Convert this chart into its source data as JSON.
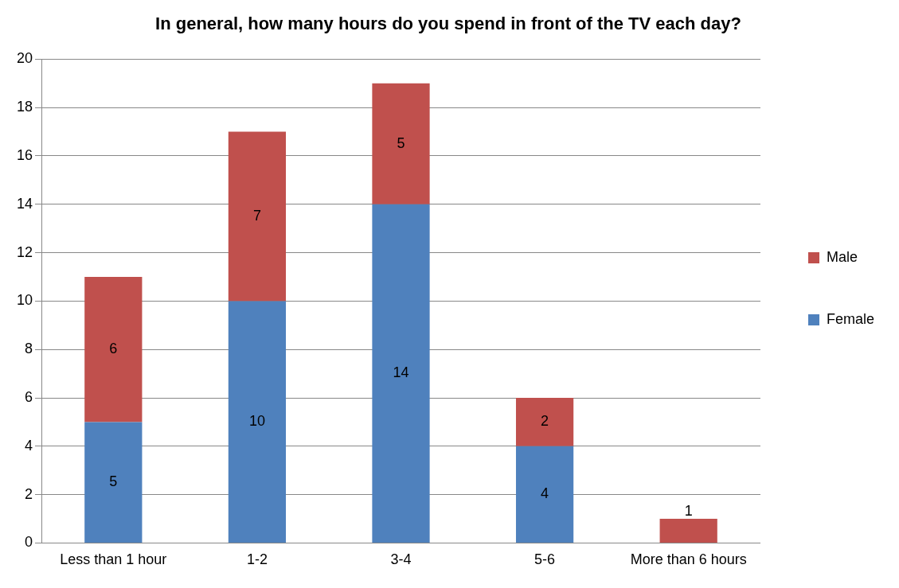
{
  "chart_data": {
    "type": "bar",
    "title": "In general, how many hours do you spend in front of the TV each day?",
    "categories": [
      "Less than 1 hour",
      "1-2",
      "3-4",
      "5-6",
      "More than 6 hours"
    ],
    "stacked": true,
    "series": [
      {
        "name": "Female",
        "color": "#4f81bd",
        "values": [
          5,
          10,
          14,
          4,
          0
        ],
        "value_labels": [
          "5",
          "10",
          "14",
          "4",
          null
        ]
      },
      {
        "name": "Male",
        "color": "#c0504d",
        "values": [
          6,
          7,
          5,
          2,
          1
        ],
        "value_labels": [
          "6",
          "7",
          "5",
          "2",
          "1"
        ]
      }
    ],
    "ylim": [
      0,
      20
    ],
    "yticks": [
      0,
      2,
      4,
      6,
      8,
      10,
      12,
      14,
      16,
      18,
      20
    ],
    "grid": "y",
    "legend": "right"
  }
}
